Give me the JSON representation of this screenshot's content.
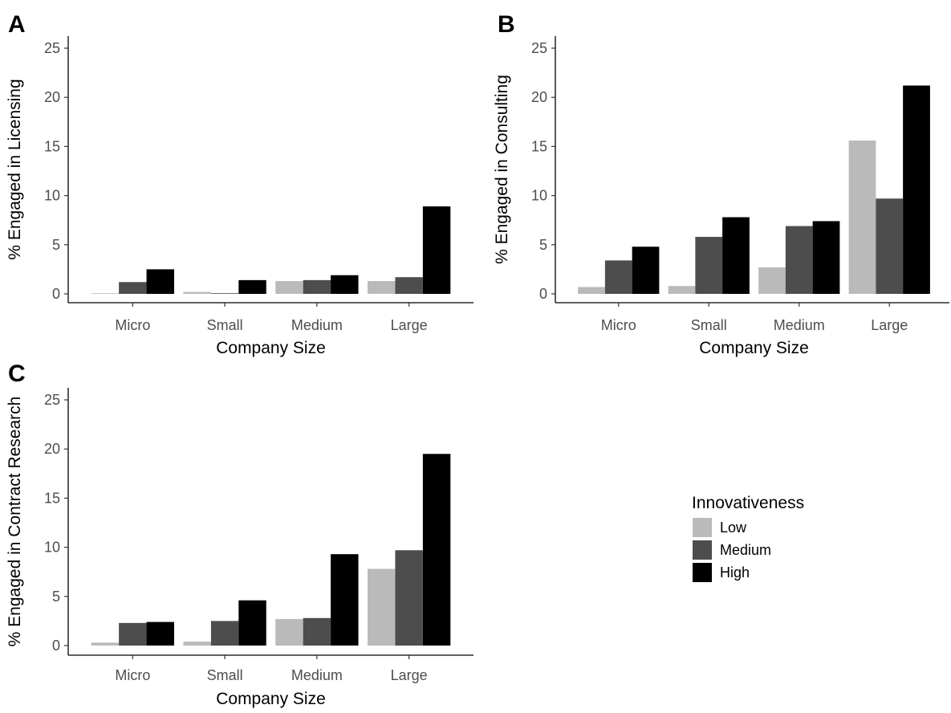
{
  "colors": {
    "Low": "#bababa",
    "Medium": "#4d4d4d",
    "High": "#000000"
  },
  "legend": {
    "title": "Innovativeness",
    "placement": "right",
    "entries": [
      "Low",
      "Medium",
      "High"
    ]
  },
  "chart_data": [
    {
      "panel": "A",
      "type": "bar",
      "xlabel": "Company Size",
      "ylabel": "% Engaged in Licensing",
      "categories": [
        "Micro",
        "Small",
        "Medium",
        "Large"
      ],
      "ylim": [
        0,
        26
      ],
      "yticks": [
        0,
        5,
        10,
        15,
        20,
        25
      ],
      "grid": false,
      "series": [
        {
          "name": "Low",
          "values": [
            0,
            0.2,
            1.3,
            1.3
          ]
        },
        {
          "name": "Medium",
          "values": [
            1.2,
            0,
            1.4,
            1.7
          ]
        },
        {
          "name": "High",
          "values": [
            2.5,
            1.4,
            1.9,
            8.9
          ]
        }
      ]
    },
    {
      "panel": "B",
      "type": "bar",
      "xlabel": "Company Size",
      "ylabel": "% Engaged in Consulting",
      "categories": [
        "Micro",
        "Small",
        "Medium",
        "Large"
      ],
      "ylim": [
        0,
        26
      ],
      "yticks": [
        0,
        5,
        10,
        15,
        20,
        25
      ],
      "grid": false,
      "series": [
        {
          "name": "Low",
          "values": [
            0.7,
            0.8,
            2.7,
            15.6
          ]
        },
        {
          "name": "Medium",
          "values": [
            3.4,
            5.8,
            6.9,
            9.7
          ]
        },
        {
          "name": "High",
          "values": [
            4.8,
            7.8,
            7.4,
            21.2
          ]
        }
      ]
    },
    {
      "panel": "C",
      "type": "bar",
      "xlabel": "Company Size",
      "ylabel": "% Engaged in Contract Research",
      "categories": [
        "Micro",
        "Small",
        "Medium",
        "Large"
      ],
      "ylim": [
        0,
        26
      ],
      "yticks": [
        0,
        5,
        10,
        15,
        20,
        25
      ],
      "grid": false,
      "series": [
        {
          "name": "Low",
          "values": [
            0.3,
            0.4,
            2.7,
            7.8
          ]
        },
        {
          "name": "Medium",
          "values": [
            2.3,
            2.5,
            2.8,
            9.7
          ]
        },
        {
          "name": "High",
          "values": [
            2.4,
            4.6,
            9.3,
            19.5
          ]
        }
      ]
    }
  ]
}
